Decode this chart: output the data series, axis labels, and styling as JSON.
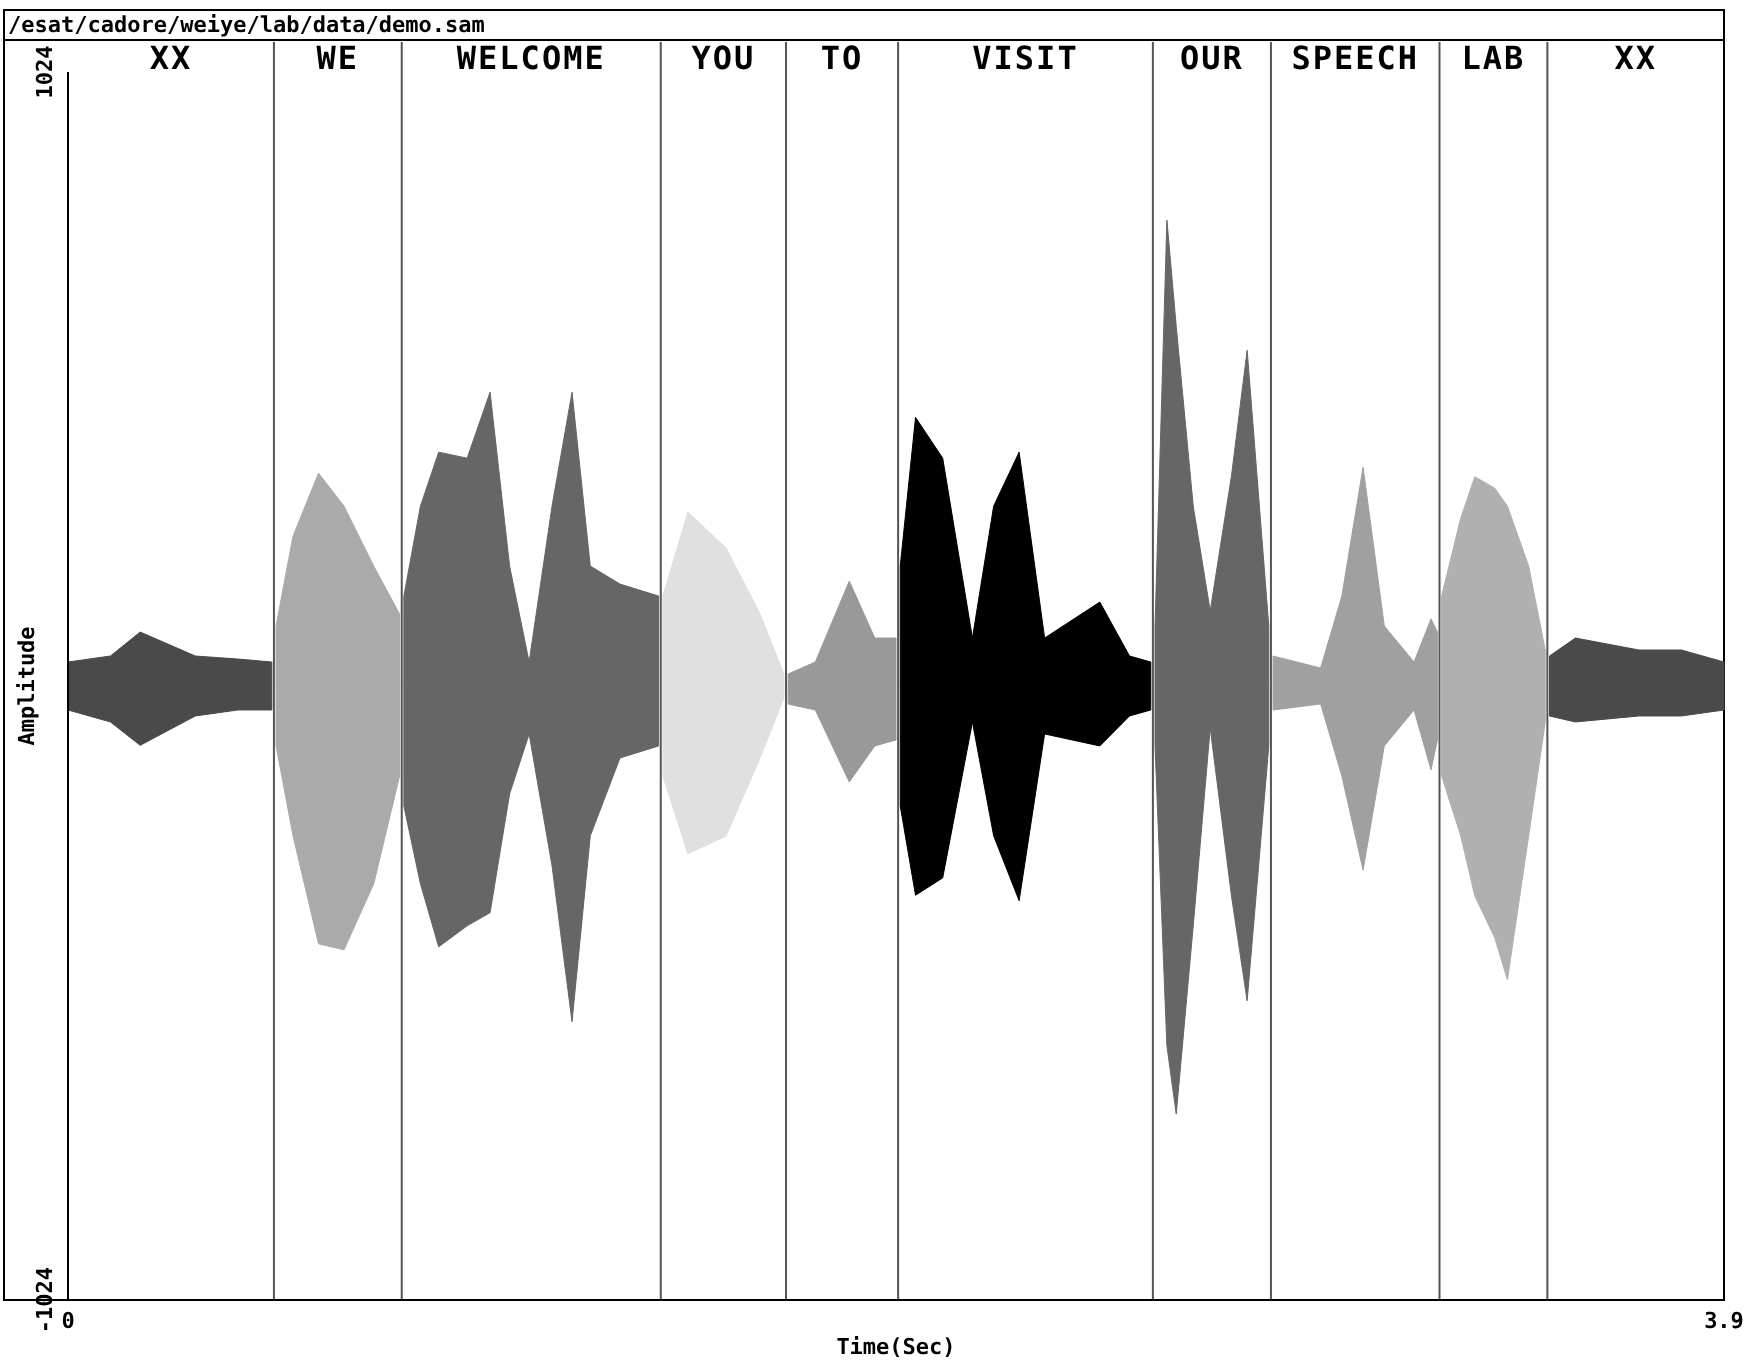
{
  "chart_data": {
    "type": "area",
    "title": "/esat/cadore/weiye/lab/data/demo.sam",
    "xlabel": "Time(Sec)",
    "ylabel": "Amplitude",
    "xlim": [
      0,
      3.9
    ],
    "xticks": [
      0,
      3.9
    ],
    "ylim": [
      -1024,
      1024
    ],
    "yticks": [
      -1024,
      1024
    ],
    "grid": false,
    "ref_lines": [
      {
        "axis": "x",
        "value": 0.485
      },
      {
        "axis": "x",
        "value": 0.786
      },
      {
        "axis": "x",
        "value": 1.396
      },
      {
        "axis": "x",
        "value": 1.691
      },
      {
        "axis": "x",
        "value": 1.955
      },
      {
        "axis": "x",
        "value": 2.555
      },
      {
        "axis": "x",
        "value": 2.833
      },
      {
        "axis": "x",
        "value": 3.23
      },
      {
        "axis": "x",
        "value": 3.484
      }
    ],
    "annotations": [
      "XX",
      "WE",
      "WELCOME",
      "YOU",
      "TO",
      "VISIT",
      "OUR",
      "SPEECH",
      "LAB",
      "XX"
    ],
    "series": [
      {
        "color": "#4a4a4a",
        "x": [
          0,
          0.1,
          0.17,
          0.3,
          0.4,
          0.48
        ],
        "values": [
          40,
          50,
          90,
          50,
          45,
          40
        ]
      },
      {
        "color": "#4a4a4a",
        "x": [
          0,
          0.1,
          0.17,
          0.3,
          0.4,
          0.48
        ],
        "values": [
          -40,
          -60,
          -99,
          -50,
          -40,
          -40
        ]
      },
      {
        "color": "#aaaaaa",
        "x": [
          0.49,
          0.53,
          0.59,
          0.65,
          0.72,
          0.781
        ],
        "values": [
          100,
          250,
          355,
          300,
          200,
          120
        ]
      },
      {
        "color": "#aaaaaa",
        "x": [
          0.49,
          0.53,
          0.59,
          0.65,
          0.72,
          0.781
        ],
        "values": [
          -100,
          -250,
          -430,
          -440,
          -330,
          -150
        ]
      },
      {
        "color": "#666666",
        "x": [
          0.791,
          0.83,
          0.873,
          0.94,
          0.994,
          1.04,
          1.086,
          1.14,
          1.187,
          1.23,
          1.3,
          1.391
        ],
        "values": [
          150,
          300,
          390,
          380,
          490,
          200,
          40,
          300,
          490,
          200,
          170,
          150
        ]
      },
      {
        "color": "#666666",
        "x": [
          0.791,
          0.83,
          0.873,
          0.94,
          0.994,
          1.04,
          1.086,
          1.14,
          1.187,
          1.23,
          1.3,
          1.391
        ],
        "values": [
          -200,
          -330,
          -435,
          -400,
          -378,
          -180,
          -80,
          -300,
          -560,
          -250,
          -120,
          -100
        ]
      },
      {
        "color": "#e0e0e0",
        "x": [
          1.401,
          1.46,
          1.55,
          1.63,
          1.686
        ],
        "values": [
          150,
          290,
          230,
          120,
          20
        ]
      },
      {
        "color": "#e0e0e0",
        "x": [
          1.401,
          1.46,
          1.55,
          1.63,
          1.686
        ],
        "values": [
          -150,
          -280,
          -250,
          -120,
          -20
        ]
      },
      {
        "color": "#999999",
        "x": [
          1.696,
          1.76,
          1.84,
          1.9,
          1.95
        ],
        "values": [
          20,
          40,
          175,
          80,
          80
        ]
      },
      {
        "color": "#999999",
        "x": [
          1.696,
          1.76,
          1.84,
          1.9,
          1.95
        ],
        "values": [
          -30,
          -40,
          -160,
          -100,
          -90
        ]
      },
      {
        "color": "#000000",
        "x": [
          1.96,
          1.996,
          2.06,
          2.13,
          2.18,
          2.24,
          2.3,
          2.43,
          2.5,
          2.55
        ],
        "values": [
          200,
          448,
          380,
          80,
          300,
          390,
          80,
          140,
          50,
          40
        ]
      },
      {
        "color": "#000000",
        "x": [
          1.96,
          1.996,
          2.06,
          2.13,
          2.18,
          2.24,
          2.3,
          2.43,
          2.5,
          2.55
        ],
        "values": [
          -200,
          -349,
          -320,
          -60,
          -250,
          -358,
          -80,
          -100,
          -50,
          -40
        ]
      },
      {
        "color": "#666666",
        "x": [
          2.56,
          2.588,
          2.61,
          2.65,
          2.69,
          2.74,
          2.777,
          2.828
        ],
        "values": [
          100,
          777,
          600,
          300,
          125,
          350,
          560,
          100
        ]
      },
      {
        "color": "#666666",
        "x": [
          2.56,
          2.588,
          2.61,
          2.65,
          2.69,
          2.74,
          2.777,
          2.828
        ],
        "values": [
          -100,
          -600,
          -714,
          -400,
          -70,
          -350,
          -525,
          -100
        ]
      },
      {
        "color": "#a0a0a0",
        "x": [
          2.838,
          2.95,
          3.0,
          3.05,
          3.1,
          3.17,
          3.21,
          3.225
        ],
        "values": [
          50,
          30,
          150,
          365,
          100,
          40,
          112,
          90
        ]
      },
      {
        "color": "#a0a0a0",
        "x": [
          2.838,
          2.95,
          3.0,
          3.05,
          3.1,
          3.17,
          3.21,
          3.225
        ],
        "values": [
          -40,
          -30,
          -150,
          -307,
          -100,
          -40,
          -140,
          -90
        ]
      },
      {
        "color": "#b0b0b0",
        "x": [
          3.235,
          3.28,
          3.313,
          3.36,
          3.39,
          3.44,
          3.479
        ],
        "values": [
          150,
          280,
          349,
          330,
          300,
          200,
          60
        ]
      },
      {
        "color": "#b0b0b0",
        "x": [
          3.235,
          3.28,
          3.313,
          3.36,
          3.39,
          3.44,
          3.479
        ],
        "values": [
          -150,
          -250,
          -350,
          -420,
          -490,
          -250,
          -60
        ]
      },
      {
        "color": "#4a4a4a",
        "x": [
          3.489,
          3.55,
          3.7,
          3.8,
          3.9
        ],
        "values": [
          50,
          80,
          60,
          60,
          40
        ]
      },
      {
        "color": "#4a4a4a",
        "x": [
          3.489,
          3.55,
          3.7,
          3.8,
          3.9
        ],
        "values": [
          -50,
          -60,
          -50,
          -50,
          -40
        ]
      }
    ]
  }
}
